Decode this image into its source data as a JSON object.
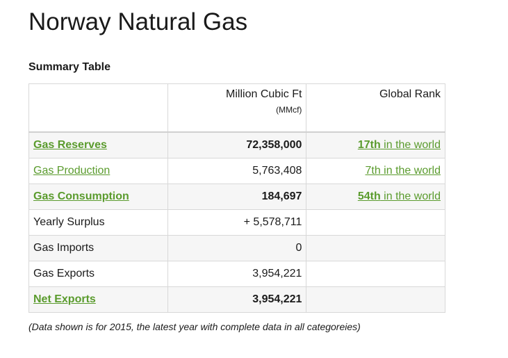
{
  "title": "Norway Natural Gas",
  "subtitle": "Summary Table",
  "table": {
    "headers": {
      "col1": "",
      "col2": "Million Cubic Ft",
      "col2_unit": "(MMcf)",
      "col3": "Global Rank"
    },
    "rows": [
      {
        "label": "Gas Reserves",
        "value": "72,358,000",
        "rank_num": "17th",
        "rank_rest": " in the world"
      },
      {
        "label": "Gas Production",
        "value": "5,763,408",
        "rank_num": "7th",
        "rank_rest": " in the world"
      },
      {
        "label": "Gas Consumption",
        "value": "184,697",
        "rank_num": "54th",
        "rank_rest": " in the world"
      },
      {
        "label": "Yearly Surplus",
        "value": "+ 5,578,711"
      },
      {
        "label": "Gas Imports",
        "value": "0"
      },
      {
        "label": "Gas Exports",
        "value": "3,954,221"
      },
      {
        "label": "Net Exports",
        "value": "3,954,221"
      }
    ]
  },
  "note": "(Data shown is for 2015, the latest year with complete data in all categoreies)",
  "colors": {
    "link": "#5a9b2d",
    "row_alt": "#f6f6f6",
    "border": "#d8d8d8"
  }
}
